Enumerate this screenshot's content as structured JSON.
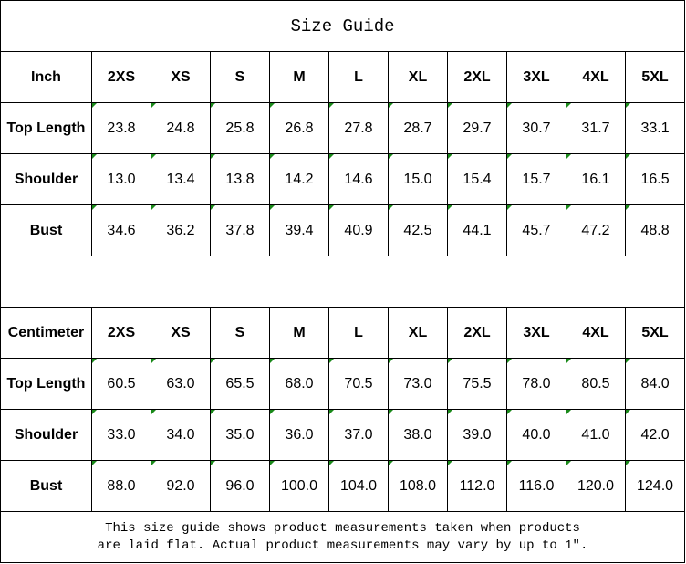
{
  "title": "Size Guide",
  "sizes": [
    "2XS",
    "XS",
    "S",
    "M",
    "L",
    "XL",
    "2XL",
    "3XL",
    "4XL",
    "5XL"
  ],
  "tables": [
    {
      "unit": "Inch",
      "rows": [
        {
          "label": "Top Length",
          "values": [
            "23.8",
            "24.8",
            "25.8",
            "26.8",
            "27.8",
            "28.7",
            "29.7",
            "30.7",
            "31.7",
            "33.1"
          ]
        },
        {
          "label": "Shoulder",
          "values": [
            "13.0",
            "13.4",
            "13.8",
            "14.2",
            "14.6",
            "15.0",
            "15.4",
            "15.7",
            "16.1",
            "16.5"
          ]
        },
        {
          "label": "Bust",
          "values": [
            "34.6",
            "36.2",
            "37.8",
            "39.4",
            "40.9",
            "42.5",
            "44.1",
            "45.7",
            "47.2",
            "48.8"
          ]
        }
      ]
    },
    {
      "unit": "Centimeter",
      "rows": [
        {
          "label": "Top Length",
          "values": [
            "60.5",
            "63.0",
            "65.5",
            "68.0",
            "70.5",
            "73.0",
            "75.5",
            "78.0",
            "80.5",
            "84.0"
          ]
        },
        {
          "label": "Shoulder",
          "values": [
            "33.0",
            "34.0",
            "35.0",
            "36.0",
            "37.0",
            "38.0",
            "39.0",
            "40.0",
            "41.0",
            "42.0"
          ]
        },
        {
          "label": "Bust",
          "values": [
            "88.0",
            "92.0",
            "96.0",
            "100.0",
            "104.0",
            "108.0",
            "112.0",
            "116.0",
            "120.0",
            "124.0"
          ]
        }
      ]
    }
  ],
  "note_line1": "This size guide shows product measurements taken when products",
  "note_line2": "are laid flat. Actual product measurements may vary by up to 1″.",
  "colors": {
    "text_indicator": "#1a8a1a",
    "border": "#000000"
  }
}
